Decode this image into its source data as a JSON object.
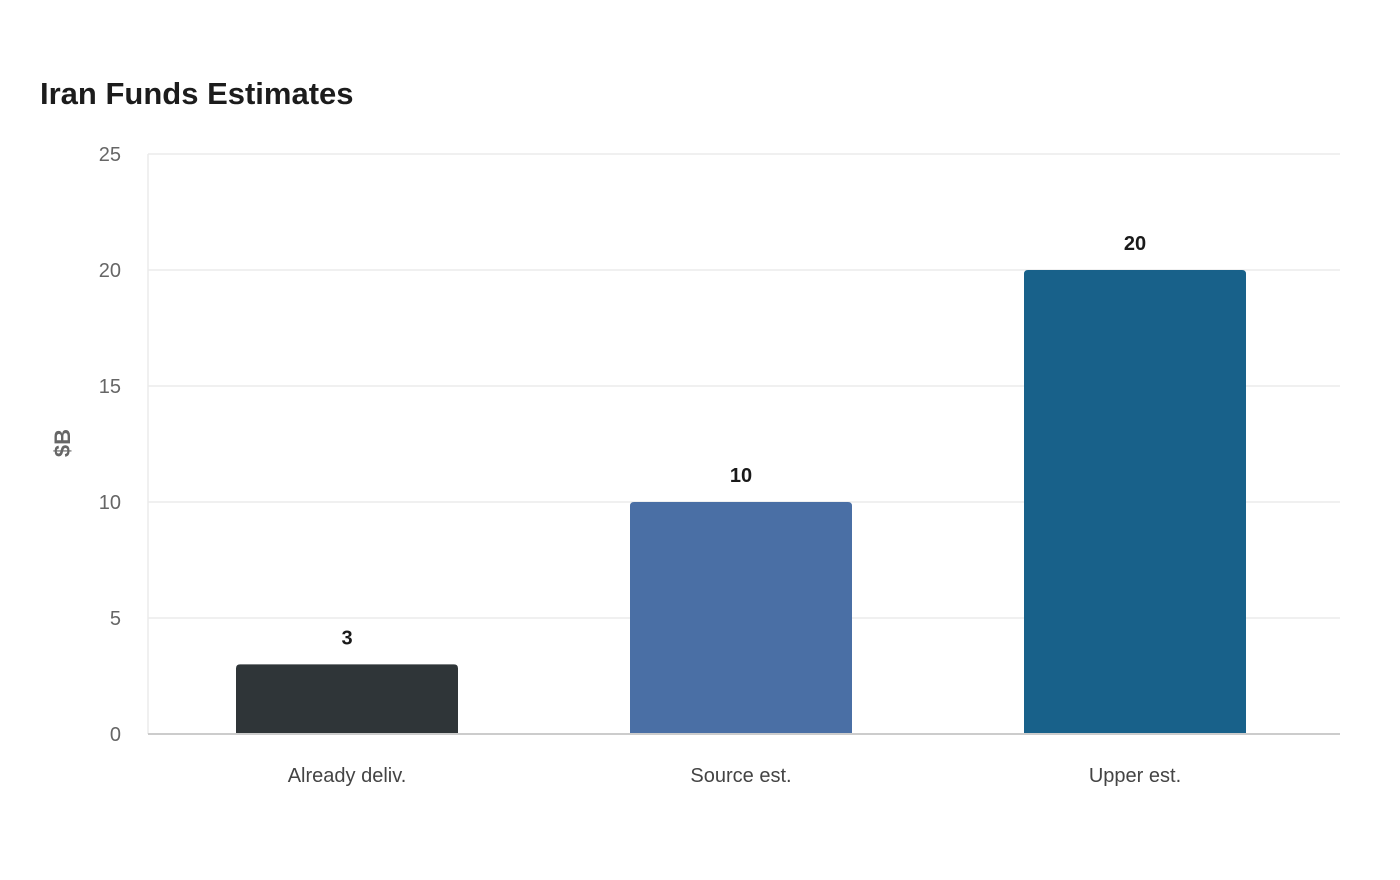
{
  "chart_data": {
    "type": "bar",
    "title": "Iran Funds Estimates",
    "xlabel": "",
    "ylabel": "$B",
    "categories": [
      "Already deliv.",
      "Source est.",
      "Upper est."
    ],
    "values": [
      3,
      10,
      20
    ],
    "data_labels": [
      "3",
      "10",
      "20"
    ],
    "colors": [
      "#2f3538",
      "#4a6fa5",
      "#18618a"
    ],
    "ylim": [
      0,
      25
    ],
    "yticks": [
      0,
      5,
      10,
      15,
      20,
      25
    ],
    "ytick_labels": [
      "0",
      "5",
      "10",
      "15",
      "20",
      "25"
    ],
    "grid": true,
    "legend": "none"
  },
  "style": {
    "grid_color": "#ebebeb",
    "axis_color": "#cccccc"
  }
}
